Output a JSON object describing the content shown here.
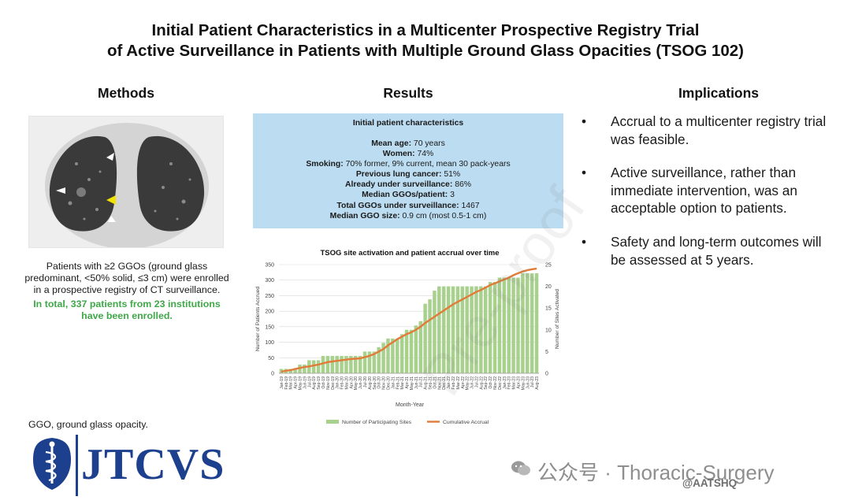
{
  "title": {
    "line1": "Initial Patient Characteristics in a Multicenter Prospective Registry Trial",
    "line2": "of Active Surveillance in Patients with Multiple Ground Glass Opacities (TSOG 102)"
  },
  "methods": {
    "heading": "Methods",
    "description": "Patients with ≥2 GGOs (ground glass predominant, <50% solid, ≤3 cm) were enrolled in a prospective registry of CT surveillance.",
    "highlight": "In total, 337 patients from 23 institutions have been enrolled.",
    "footnote": "GGO, ground glass opacity."
  },
  "results": {
    "heading": "Results",
    "box_title": "Initial patient characteristics",
    "items": [
      {
        "label": "Mean age:",
        "value": "70 years"
      },
      {
        "label": "Women:",
        "value": "74%"
      },
      {
        "label": "Smoking:",
        "value": "70% former, 9% current, mean 30 pack-years"
      },
      {
        "label": "Previous lung cancer:",
        "value": "51%"
      },
      {
        "label": "Already under surveillance:",
        "value": "86%"
      },
      {
        "label": "Median GGOs/patient:",
        "value": "3"
      },
      {
        "label": "Total GGOs under surveillance:",
        "value": "1467"
      },
      {
        "label": "Median GGO size:",
        "value": "0.9 cm (most 0.5-1 cm)"
      }
    ]
  },
  "implications": {
    "heading": "Implications",
    "bullet_char": "•",
    "items": [
      "Accrual to a multicenter registry trial was feasible.",
      "Active surveillance, rather than immediate intervention, was an acceptable option to patients.",
      "Safety and long-term outcomes will be assessed at 5 years."
    ]
  },
  "logo": {
    "text": "JTCVS",
    "color": "#1c3f8e"
  },
  "watermark": {
    "diagonal": "Pre-proof",
    "account": "公众号 · Thoracic-Surgery",
    "handle": "@AATSHQ"
  },
  "chart_data": {
    "type": "bar",
    "title": "TSOG site activation and patient accrual over time",
    "xlabel": "Month-Year",
    "ylabel": "Number of Patients Accrued",
    "y2label": "Number of Sites Activated",
    "ylim": [
      0,
      350
    ],
    "y2lim": [
      0,
      25
    ],
    "yticks": [
      0,
      50,
      100,
      150,
      200,
      250,
      300,
      350
    ],
    "y2ticks": [
      0,
      5,
      10,
      15,
      20,
      25
    ],
    "grid": true,
    "legend_position": "bottom",
    "colors": {
      "bars": "#a9d18e",
      "line": "#e07b39",
      "grid": "#d9d9d9"
    },
    "categories": [
      "Jan-19",
      "Feb-19",
      "Mar-19",
      "Apr-19",
      "May-19",
      "Jun-19",
      "Jul-19",
      "Aug-19",
      "Sep-19",
      "Oct-19",
      "Nov-19",
      "Dec-19",
      "Jan-20",
      "Feb-20",
      "Mar-20",
      "Apr-20",
      "May-20",
      "Jun-20",
      "Jul-20",
      "Aug-20",
      "Sep-20",
      "Oct-20",
      "Nov-20",
      "Dec-20",
      "Jan-21",
      "Feb-21",
      "Mar-21",
      "Apr-21",
      "May-21",
      "Jun-21",
      "Jul-21",
      "Aug-21",
      "Sep-21",
      "Oct-21",
      "Nov-21",
      "Dec-21",
      "Jan-22",
      "Feb-22",
      "Mar-22",
      "Apr-22",
      "May-22",
      "Jun-22",
      "Jul-22",
      "Aug-22",
      "Sep-22",
      "Oct-22",
      "Nov-22",
      "Dec-22",
      "Jan-23",
      "Feb-23",
      "Mar-23",
      "Apr-23",
      "May-23",
      "Jun-23",
      "Jul-23",
      "Aug-23"
    ],
    "series": [
      {
        "name": "Number of Participating Sites",
        "type": "bar",
        "axis": "right",
        "values": [
          1,
          1,
          1,
          1,
          2,
          2,
          3,
          3,
          3,
          4,
          4,
          4,
          4,
          4,
          4,
          4,
          4,
          4,
          5,
          5,
          5,
          6,
          7,
          8,
          8,
          8,
          9,
          10,
          10,
          11,
          12,
          16,
          17,
          19,
          20,
          20,
          20,
          20,
          20,
          20,
          20,
          20,
          20,
          20,
          20,
          21,
          21,
          22,
          22,
          22,
          22,
          22,
          23,
          23,
          23,
          23
        ]
      },
      {
        "name": "Cumulative Accrual",
        "type": "line",
        "axis": "left",
        "values": [
          5,
          8,
          10,
          14,
          17,
          20,
          22,
          25,
          28,
          32,
          36,
          38,
          40,
          42,
          44,
          46,
          47,
          48,
          52,
          56,
          62,
          70,
          78,
          90,
          100,
          110,
          118,
          126,
          132,
          140,
          150,
          162,
          172,
          182,
          192,
          202,
          212,
          222,
          230,
          238,
          246,
          254,
          262,
          268,
          276,
          284,
          290,
          296,
          302,
          308,
          316,
          322,
          328,
          332,
          335,
          337
        ]
      }
    ]
  }
}
